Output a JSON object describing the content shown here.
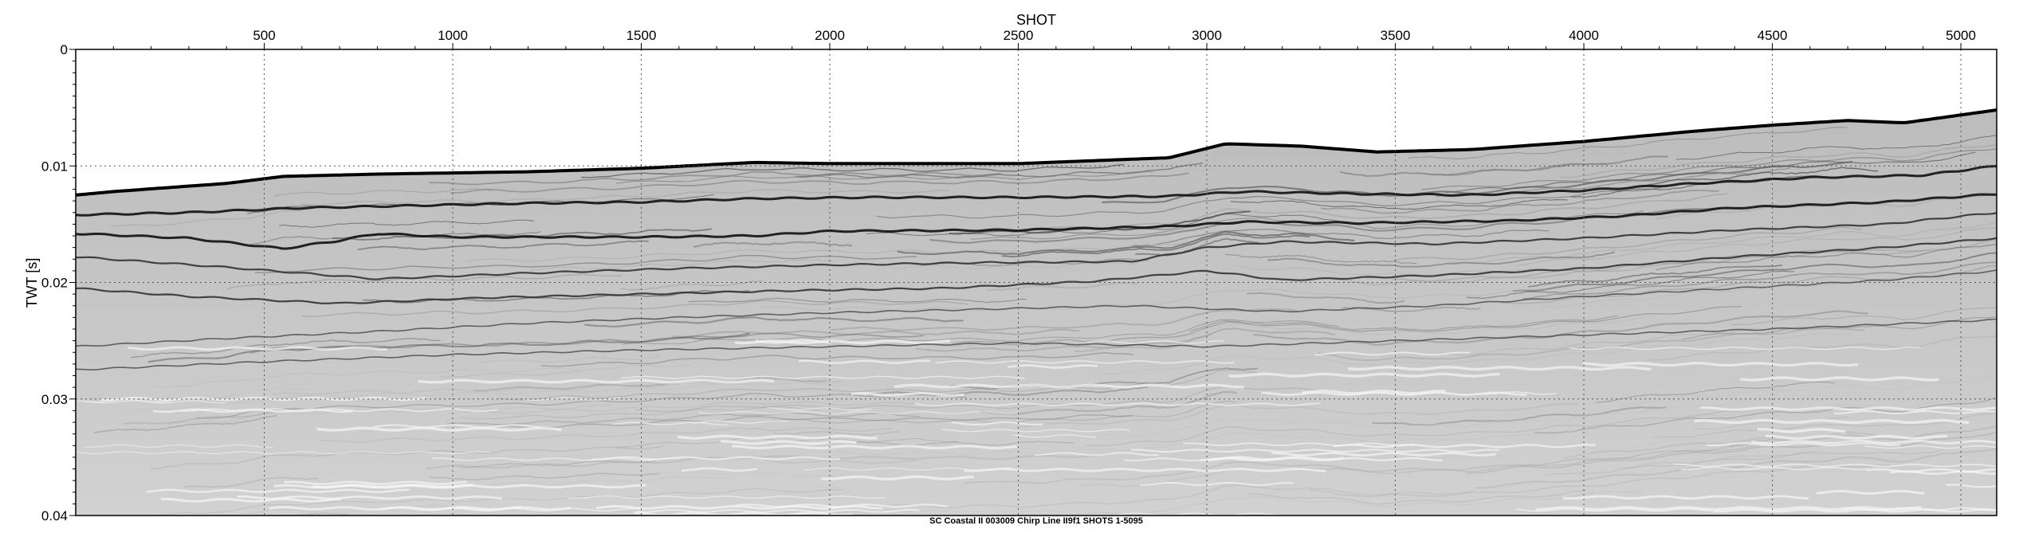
{
  "chart_data": {
    "type": "heatmap",
    "title": "",
    "xlabel": "SHOT",
    "ylabel": "TWT [s]",
    "xlim": [
      0,
      5095
    ],
    "ylim": [
      0,
      0.04
    ],
    "y_inverted": true,
    "x_axis_position": "top",
    "x_ticks": [
      500,
      1000,
      1500,
      2000,
      2500,
      3000,
      3500,
      4000,
      4500,
      5000
    ],
    "x_tick_labels": [
      "500",
      "1000",
      "1500",
      "2000",
      "2500",
      "3000",
      "3500",
      "4000",
      "4500",
      "5000"
    ],
    "y_ticks": [
      0,
      0.01,
      0.02,
      0.03,
      0.04
    ],
    "y_tick_labels": [
      "0",
      "0.01",
      "0.02",
      "0.03",
      "0.04"
    ],
    "grid": true,
    "grid_style": "dotted",
    "colormap": "grayscale",
    "seafloor_reflector": {
      "x": [
        0,
        100,
        400,
        550,
        800,
        1200,
        1500,
        1800,
        2000,
        2500,
        2900,
        3050,
        3250,
        3450,
        3700,
        4000,
        4300,
        4500,
        4700,
        4850,
        5095
      ],
      "y": [
        0.0125,
        0.0122,
        0.0115,
        0.0109,
        0.0107,
        0.0105,
        0.0102,
        0.0097,
        0.0098,
        0.0098,
        0.0093,
        0.0081,
        0.0083,
        0.0088,
        0.0086,
        0.0079,
        0.007,
        0.0065,
        0.0061,
        0.0063,
        0.0052
      ]
    },
    "reflectors": [
      {
        "x": [
          0,
          300,
          600,
          900,
          1200,
          1500,
          1800,
          2100,
          2500,
          2900,
          3100,
          3400,
          3700,
          4000,
          4300,
          4600,
          4900,
          5095
        ],
        "y": [
          0.0142,
          0.014,
          0.0136,
          0.0134,
          0.0132,
          0.0131,
          0.0128,
          0.0127,
          0.0127,
          0.0126,
          0.0122,
          0.0124,
          0.0125,
          0.0121,
          0.0115,
          0.011,
          0.0108,
          0.01
        ]
      },
      {
        "x": [
          0,
          300,
          550,
          700,
          800,
          1000,
          1500,
          1800,
          2000,
          2500,
          2900,
          3100,
          3400,
          3800,
          4100,
          4400,
          4800,
          5095
        ],
        "y": [
          0.0158,
          0.0162,
          0.0171,
          0.0164,
          0.0158,
          0.0161,
          0.0161,
          0.016,
          0.0156,
          0.0155,
          0.0152,
          0.0148,
          0.0149,
          0.0147,
          0.0143,
          0.0136,
          0.0131,
          0.0124
        ]
      },
      {
        "x": [
          0,
          400,
          800,
          1200,
          1600,
          2000,
          2400,
          2800,
          3000,
          3200,
          3600,
          4000,
          4400,
          4800,
          5095
        ],
        "y": [
          0.0178,
          0.0187,
          0.0197,
          0.0192,
          0.0188,
          0.0185,
          0.0183,
          0.0182,
          0.017,
          0.0165,
          0.0167,
          0.0162,
          0.0155,
          0.015,
          0.014
        ]
      },
      {
        "x": [
          0,
          300,
          700,
          1100,
          1500,
          1900,
          2300,
          2700,
          3000,
          3200,
          3600,
          4000,
          4400,
          4800,
          5095
        ],
        "y": [
          0.0205,
          0.0212,
          0.0218,
          0.0213,
          0.021,
          0.0207,
          0.0205,
          0.0199,
          0.019,
          0.0198,
          0.0194,
          0.0188,
          0.0178,
          0.017,
          0.0162
        ]
      },
      {
        "x": [
          0,
          400,
          800,
          1200,
          1600,
          2000,
          2400,
          2800,
          3200,
          3600,
          4000,
          4400,
          4800,
          5095
        ],
        "y": [
          0.0255,
          0.0248,
          0.0242,
          0.0235,
          0.023,
          0.0226,
          0.0223,
          0.022,
          0.0225,
          0.022,
          0.0212,
          0.0205,
          0.0198,
          0.019
        ]
      },
      {
        "x": [
          0,
          500,
          1000,
          1500,
          2000,
          2500,
          3000,
          3500,
          4000,
          4500,
          5095
        ],
        "y": [
          0.0275,
          0.0268,
          0.0262,
          0.0258,
          0.0255,
          0.0252,
          0.0255,
          0.025,
          0.0245,
          0.024,
          0.0232
        ]
      }
    ],
    "caption": "SC Coastal II 003009 Chirp Line II9f1 SHOTS 1-5095"
  }
}
